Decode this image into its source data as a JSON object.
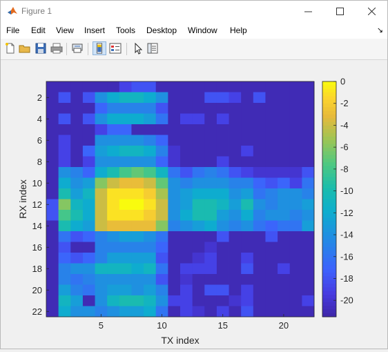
{
  "window": {
    "title": "Figure 1"
  },
  "menu": [
    "File",
    "Edit",
    "View",
    "Insert",
    "Tools",
    "Desktop",
    "Window",
    "Help"
  ],
  "toolbar_icons": [
    "new-figure-icon",
    "open-file-icon",
    "save-icon",
    "print-icon",
    "print-preview-icon",
    "link-plot-icon",
    "insert-legend-icon",
    "pointer-icon",
    "property-inspector-icon"
  ],
  "chart_data": {
    "type": "heatmap",
    "title": "",
    "xlabel": "TX index",
    "ylabel": "RX index",
    "x_ticks": [
      5,
      10,
      15,
      20
    ],
    "y_ticks": [
      2,
      4,
      6,
      8,
      10,
      12,
      14,
      16,
      18,
      20,
      22
    ],
    "xlim": [
      0.5,
      22.5
    ],
    "ylim": [
      0.5,
      22.5
    ],
    "clim": [
      -21.5,
      0
    ],
    "colorbar_ticks": [
      0,
      -2,
      -4,
      -6,
      -8,
      -10,
      -12,
      -14,
      -16,
      -18,
      -20
    ],
    "colormap": "parula",
    "values": [
      [
        -21,
        -21,
        -21,
        -21,
        -21,
        -21,
        -19,
        -18,
        -18,
        -21,
        -21,
        -21,
        -21,
        -21,
        -21,
        -21,
        -21,
        -21,
        -21,
        -21,
        -21,
        -21
      ],
      [
        -21,
        -18,
        -21,
        -18,
        -14,
        -12,
        -11,
        -11,
        -12,
        -14,
        -21,
        -21,
        -21,
        -18,
        -18,
        -19,
        -21,
        -18,
        -21,
        -21,
        -21,
        -21
      ],
      [
        -21,
        -21,
        -21,
        -21,
        -17,
        -15,
        -15,
        -15,
        -15,
        -18,
        -21,
        -21,
        -21,
        -21,
        -21,
        -21,
        -21,
        -21,
        -21,
        -21,
        -21,
        -21
      ],
      [
        -21,
        -18,
        -21,
        -18,
        -14,
        -12,
        -12,
        -12,
        -13,
        -16,
        -21,
        -19,
        -19,
        -21,
        -19,
        -21,
        -21,
        -21,
        -21,
        -21,
        -21,
        -21
      ],
      [
        -21,
        -21,
        -21,
        -21,
        -19,
        -17,
        -17,
        -21,
        -21,
        -21,
        -21,
        -21,
        -21,
        -21,
        -21,
        -21,
        -21,
        -21,
        -21,
        -21,
        -21,
        -21
      ],
      [
        -21,
        -19,
        -21,
        -21,
        -14,
        -14,
        -14,
        -14,
        -15,
        -17,
        -21,
        -21,
        -21,
        -21,
        -21,
        -21,
        -21,
        -21,
        -21,
        -21,
        -21,
        -21
      ],
      [
        -21,
        -19,
        -21,
        -17,
        -13,
        -12,
        -11,
        -11,
        -12,
        -15,
        -20,
        -21,
        -21,
        -21,
        -21,
        -21,
        -19,
        -21,
        -21,
        -21,
        -21,
        -21
      ],
      [
        -21,
        -19,
        -21,
        -19,
        -14,
        -14,
        -14,
        -14,
        -14,
        -17,
        -20,
        -21,
        -21,
        -21,
        -19,
        -21,
        -21,
        -21,
        -21,
        -21,
        -21,
        -21
      ],
      [
        -21,
        -14,
        -15,
        -17,
        -12,
        -10,
        -8,
        -7,
        -8,
        -11,
        -16,
        -18,
        -16,
        -15,
        -16,
        -18,
        -19,
        -20,
        -20,
        -20,
        -20,
        -18
      ],
      [
        -21,
        -12,
        -14,
        -13,
        -6,
        -4,
        -3,
        -3,
        -4,
        -7,
        -14,
        -15,
        -14,
        -14,
        -14,
        -15,
        -15,
        -17,
        -18,
        -17,
        -19,
        -16
      ],
      [
        -21,
        -10,
        -13,
        -11,
        -4,
        -1,
        -1,
        -1,
        -2,
        -5,
        -14,
        -13,
        -12,
        -12,
        -12,
        -14,
        -13,
        -16,
        -15,
        -14,
        -14,
        -15
      ],
      [
        -18,
        -6,
        -11,
        -12,
        -4,
        -1,
        0,
        0,
        -1,
        -4,
        -14,
        -13,
        -10,
        -10,
        -11,
        -13,
        -10,
        -14,
        -15,
        -14,
        -14,
        -13
      ],
      [
        -18,
        -8,
        -10,
        -12,
        -4,
        -1,
        -1,
        -1,
        -2,
        -4,
        -14,
        -12,
        -10,
        -10,
        -13,
        -14,
        -12,
        -15,
        -14,
        -14,
        -15,
        -14
      ],
      [
        -21,
        -10,
        -12,
        -13,
        -4,
        -3,
        -3,
        -3,
        -3,
        -6,
        -15,
        -14,
        -13,
        -12,
        -14,
        -15,
        -14,
        -16,
        -17,
        -16,
        -16,
        -13
      ],
      [
        -21,
        -16,
        -18,
        -17,
        -15,
        -14,
        -13,
        -13,
        -14,
        -16,
        -21,
        -21,
        -21,
        -21,
        -18,
        -21,
        -21,
        -21,
        -18,
        -21,
        -21,
        -21
      ],
      [
        -21,
        -18,
        -21,
        -21,
        -15,
        -15,
        -15,
        -15,
        -15,
        -17,
        -21,
        -21,
        -21,
        -20,
        -21,
        -21,
        -21,
        -21,
        -21,
        -21,
        -21,
        -21
      ],
      [
        -21,
        -17,
        -18,
        -17,
        -15,
        -13,
        -13,
        -13,
        -13,
        -18,
        -21,
        -21,
        -20,
        -19,
        -21,
        -21,
        -19,
        -21,
        -21,
        -21,
        -21,
        -21
      ],
      [
        -21,
        -15,
        -14,
        -14,
        -11,
        -11,
        -11,
        -12,
        -11,
        -16,
        -21,
        -19,
        -19,
        -19,
        -21,
        -21,
        -18,
        -21,
        -21,
        -19,
        -21,
        -21
      ],
      [
        -21,
        -15,
        -16,
        -15,
        -14,
        -14,
        -14,
        -14,
        -14,
        -18,
        -21,
        -20,
        -21,
        -21,
        -21,
        -21,
        -21,
        -21,
        -21,
        -21,
        -21,
        -21
      ],
      [
        -21,
        -13,
        -15,
        -16,
        -14,
        -13,
        -13,
        -14,
        -13,
        -15,
        -21,
        -19,
        -21,
        -18,
        -18,
        -21,
        -19,
        -21,
        -21,
        -21,
        -21,
        -21
      ],
      [
        -21,
        -11,
        -13,
        -21,
        -14,
        -11,
        -10,
        -10,
        -11,
        -14,
        -19,
        -19,
        -21,
        -21,
        -21,
        -20,
        -19,
        -21,
        -21,
        -21,
        -21,
        -19
      ],
      [
        -21,
        -12,
        -14,
        -14,
        -15,
        -14,
        -13,
        -13,
        -12,
        -16,
        -21,
        -19,
        -20,
        -21,
        -19,
        -21,
        -18,
        -21,
        -21,
        -21,
        -21,
        -21
      ]
    ]
  }
}
